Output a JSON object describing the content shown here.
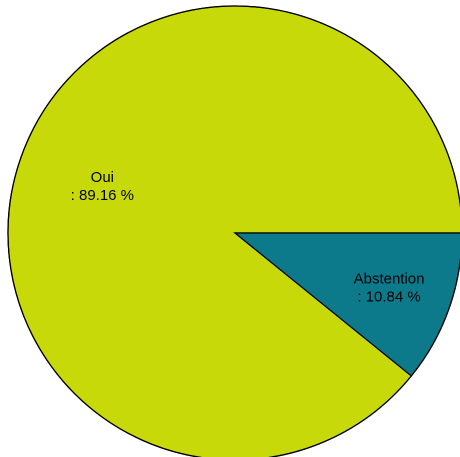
{
  "chart_data": {
    "type": "pie",
    "title": "",
    "slices": [
      {
        "label": "Oui",
        "value_label": ": 89.16 %",
        "value": 89.16,
        "color": "#c8d90a"
      },
      {
        "label": "Abstention",
        "value_label": ": 10.84 %",
        "value": 10.84,
        "color": "#0d7a8c"
      }
    ],
    "start_angle_deg": 0,
    "direction": "counterclockwise",
    "legend": "none"
  }
}
